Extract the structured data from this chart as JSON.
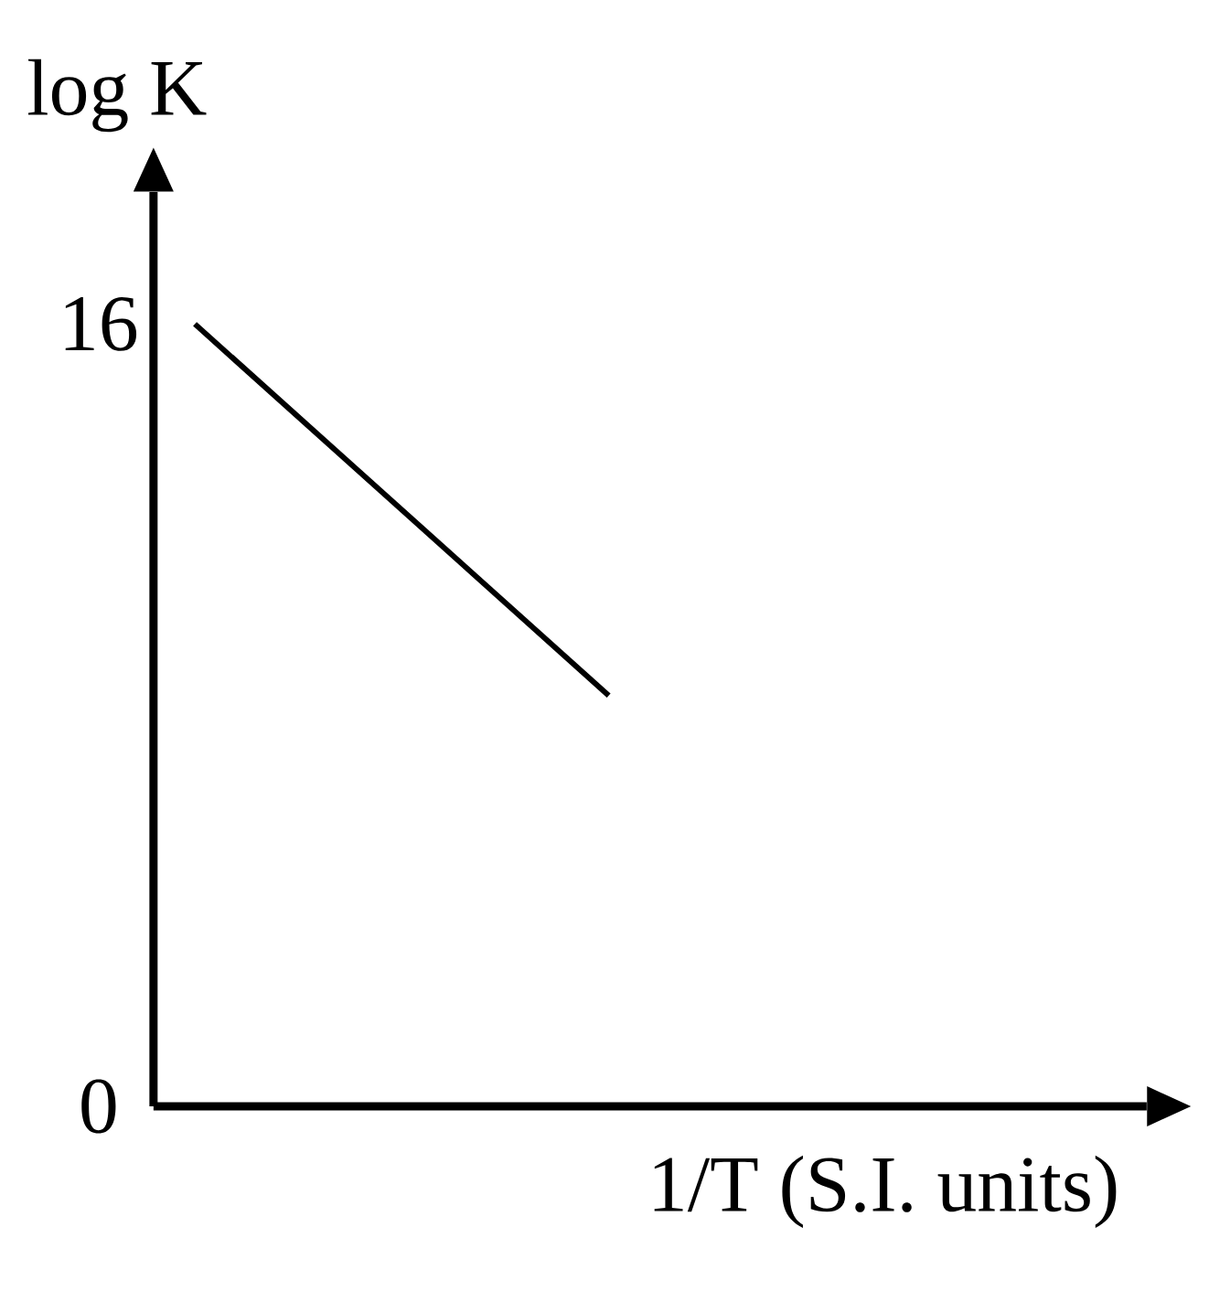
{
  "chart_data": {
    "type": "line",
    "xlabel": "1/T (S.I. units)",
    "ylabel": "log K",
    "categories": [
      null,
      null,
      null,
      null,
      null,
      null,
      null,
      null,
      null,
      null,
      null,
      null
    ],
    "values": [
      16,
      null,
      null,
      null,
      null,
      8.4,
      null,
      null,
      null,
      null,
      null,
      null
    ],
    "color": "#000000",
    "ylim": [
      0,
      18.7
    ],
    "yticks": [
      0,
      16
    ],
    "tick_labels": "y",
    "grid": false
  }
}
